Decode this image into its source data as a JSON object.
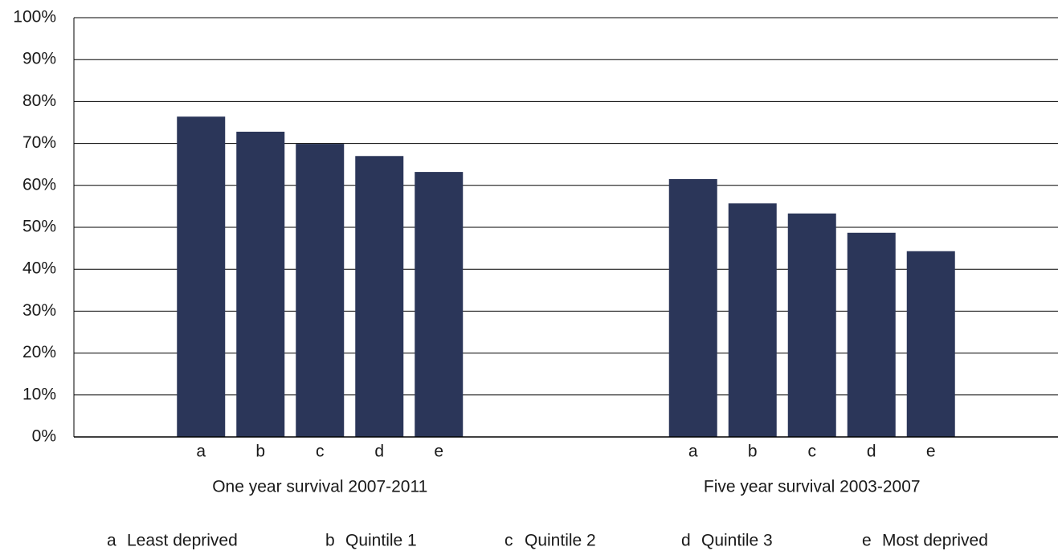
{
  "chart_data": {
    "type": "bar",
    "color": "#2b3659",
    "ylim": [
      0,
      100
    ],
    "yticks": [
      {
        "value": 0,
        "label": "0%"
      },
      {
        "value": 10,
        "label": "10%"
      },
      {
        "value": 20,
        "label": "20%"
      },
      {
        "value": 30,
        "label": "30%"
      },
      {
        "value": 40,
        "label": "40%"
      },
      {
        "value": 50,
        "label": "50%"
      },
      {
        "value": 60,
        "label": "60%"
      },
      {
        "value": 70,
        "label": "70%"
      },
      {
        "value": 80,
        "label": "80%"
      },
      {
        "value": 90,
        "label": "90%"
      },
      {
        "value": 100,
        "label": "100%"
      }
    ],
    "grid": true,
    "groups": [
      {
        "name": "One year survival 2007-2011",
        "categories": [
          "a",
          "b",
          "c",
          "d",
          "e"
        ],
        "values": [
          76.4,
          72.8,
          69.9,
          67.0,
          63.2
        ]
      },
      {
        "name": "Five year survival 2003-2007",
        "categories": [
          "a",
          "b",
          "c",
          "d",
          "e"
        ],
        "values": [
          61.5,
          55.7,
          53.3,
          48.7,
          44.3
        ]
      }
    ],
    "key": [
      {
        "letter": "a",
        "label": "Least deprived"
      },
      {
        "letter": "b",
        "label": "Quintile 1"
      },
      {
        "letter": "c",
        "label": "Quintile 2"
      },
      {
        "letter": "d",
        "label": "Quintile 3"
      },
      {
        "letter": "e",
        "label": "Most deprived"
      }
    ]
  }
}
